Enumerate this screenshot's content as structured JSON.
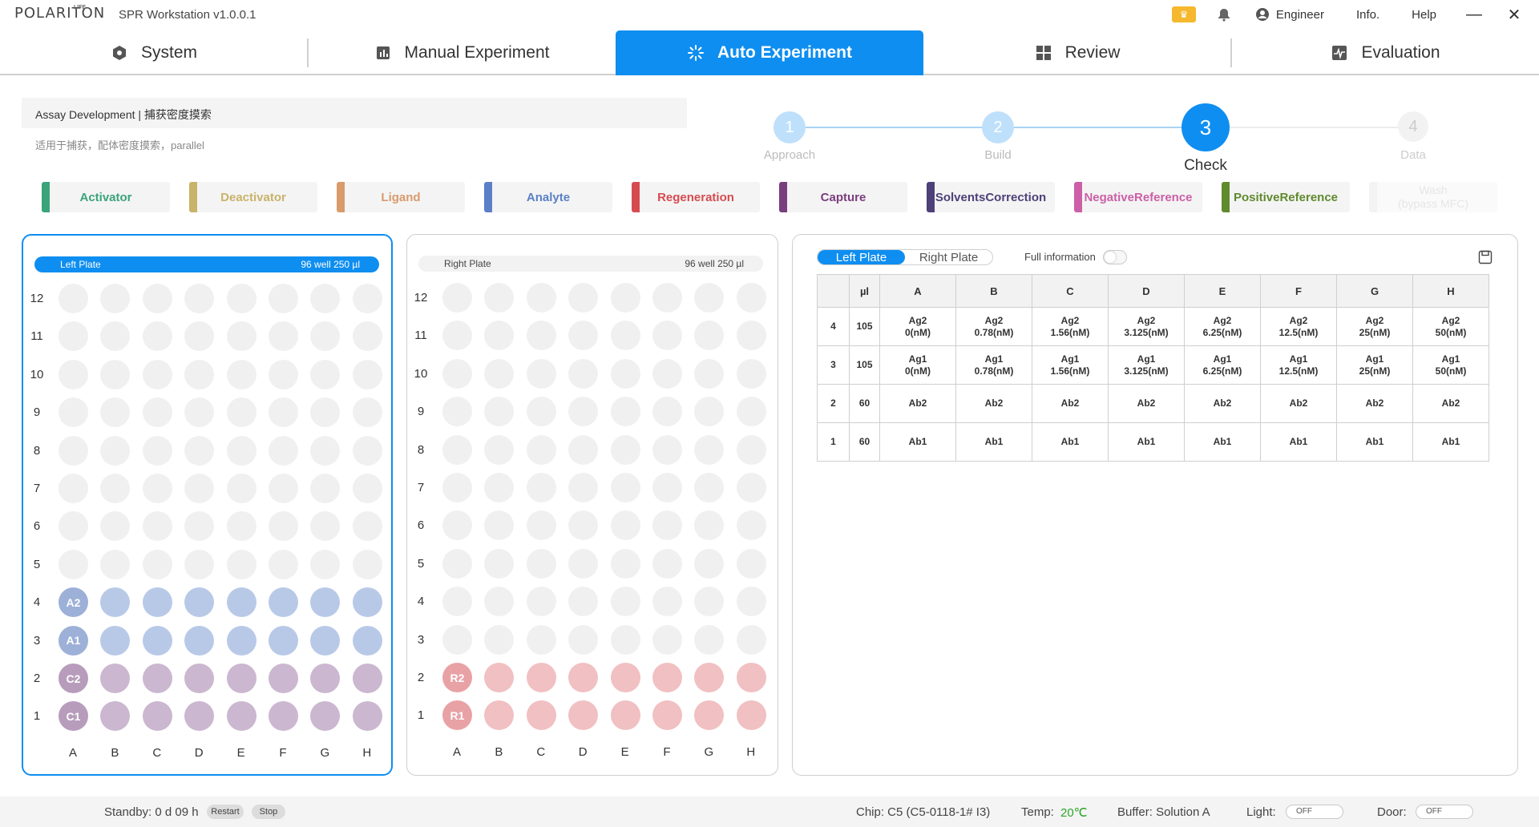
{
  "titlebar": {
    "logo": "POLARITON",
    "logo_sup": "LIFE",
    "app_title": "SPR Workstation v1.0.0.1",
    "user": "Engineer",
    "info": "Info.",
    "help": "Help",
    "minimize": "—",
    "close": "✕"
  },
  "tabs": [
    {
      "label": "System",
      "icon": "hexagon-icon"
    },
    {
      "label": "Manual Experiment",
      "icon": "chart-icon"
    },
    {
      "label": "Auto Experiment",
      "icon": "spinner-icon",
      "active": true
    },
    {
      "label": "Review",
      "icon": "grid-icon"
    },
    {
      "label": "Evaluation",
      "icon": "pulse-icon"
    }
  ],
  "assay": {
    "title": "Assay Development | 捕获密度摸索",
    "subtitle": "适用于捕获，配体密度摸索，parallel"
  },
  "stepper": [
    {
      "num": "1",
      "label": "Approach"
    },
    {
      "num": "2",
      "label": "Build"
    },
    {
      "num": "3",
      "label": "Check"
    },
    {
      "num": "4",
      "label": "Data"
    }
  ],
  "reagents": [
    {
      "label": "Activator",
      "color": "#3aa37a"
    },
    {
      "label": "Deactivator",
      "color": "#c8b36a"
    },
    {
      "label": "Ligand",
      "color": "#d99a6c"
    },
    {
      "label": "Analyte",
      "color": "#5b80c6"
    },
    {
      "label": "Regeneration",
      "color": "#d64b50"
    },
    {
      "label": "Capture",
      "color": "#7a3e7e"
    },
    {
      "label": "SolventsCorrection",
      "color": "#4e4078"
    },
    {
      "label": "NegativeReference",
      "color": "#cc5fa7"
    },
    {
      "label": "PositiveReference",
      "color": "#5f8a2e"
    },
    {
      "label": "Wash\n(bypass MFC)",
      "color": "#eeeeee"
    }
  ],
  "plates": {
    "left": {
      "name": "Left Plate",
      "spec": "96 well 250 µl"
    },
    "right": {
      "name": "Right Plate",
      "spec": "96 well 250 µl"
    },
    "rows": [
      "12",
      "11",
      "10",
      "9",
      "8",
      "7",
      "6",
      "5",
      "4",
      "3",
      "2",
      "1"
    ],
    "cols": [
      "A",
      "B",
      "C",
      "D",
      "E",
      "F",
      "G",
      "H"
    ],
    "left_filled": [
      {
        "row": "4",
        "label": "A2",
        "color": "#b8c9e8",
        "label_color": "#9db0d8"
      },
      {
        "row": "3",
        "label": "A1",
        "color": "#b8c9e8",
        "label_color": "#9db0d8"
      },
      {
        "row": "2",
        "label": "C2",
        "color": "#cbb7cf",
        "label_color": "#b79cbc"
      },
      {
        "row": "1",
        "label": "C1",
        "color": "#cbb7cf",
        "label_color": "#b79cbc"
      }
    ],
    "right_filled": [
      {
        "row": "2",
        "label": "R2",
        "color": "#f1c0c2",
        "label_color": "#e8a2a5"
      },
      {
        "row": "1",
        "label": "R1",
        "color": "#f1c0c2",
        "label_color": "#e8a2a5"
      }
    ]
  },
  "info_panel": {
    "seg_left": "Left Plate",
    "seg_right": "Right Plate",
    "full_info": "Full information",
    "header": [
      "",
      "µl",
      "A",
      "B",
      "C",
      "D",
      "E",
      "F",
      "G",
      "H"
    ],
    "rows": [
      [
        "4",
        "105",
        "Ag2\n0(nM)",
        "Ag2\n0.78(nM)",
        "Ag2\n1.56(nM)",
        "Ag2\n3.125(nM)",
        "Ag2\n6.25(nM)",
        "Ag2\n12.5(nM)",
        "Ag2\n25(nM)",
        "Ag2\n50(nM)"
      ],
      [
        "3",
        "105",
        "Ag1\n0(nM)",
        "Ag1\n0.78(nM)",
        "Ag1\n1.56(nM)",
        "Ag1\n3.125(nM)",
        "Ag1\n6.25(nM)",
        "Ag1\n12.5(nM)",
        "Ag1\n25(nM)",
        "Ag1\n50(nM)"
      ],
      [
        "2",
        "60",
        "Ab2",
        "Ab2",
        "Ab2",
        "Ab2",
        "Ab2",
        "Ab2",
        "Ab2",
        "Ab2"
      ],
      [
        "1",
        "60",
        "Ab1",
        "Ab1",
        "Ab1",
        "Ab1",
        "Ab1",
        "Ab1",
        "Ab1",
        "Ab1"
      ]
    ]
  },
  "status": {
    "standby": "Standby: 0 d 09 h",
    "restart": "Restart",
    "stop": "Stop",
    "chip": "Chip: C5 (C5-0118-1# I3)",
    "temp_label": "Temp:",
    "temp_value": "20℃",
    "buffer": "Buffer:  Solution A",
    "light_label": "Light:",
    "light_state": "OFF",
    "door_label": "Door:",
    "door_state": "OFF"
  },
  "colors": {
    "accent": "#0e8ef0",
    "temp_green": "#2aa52a"
  }
}
